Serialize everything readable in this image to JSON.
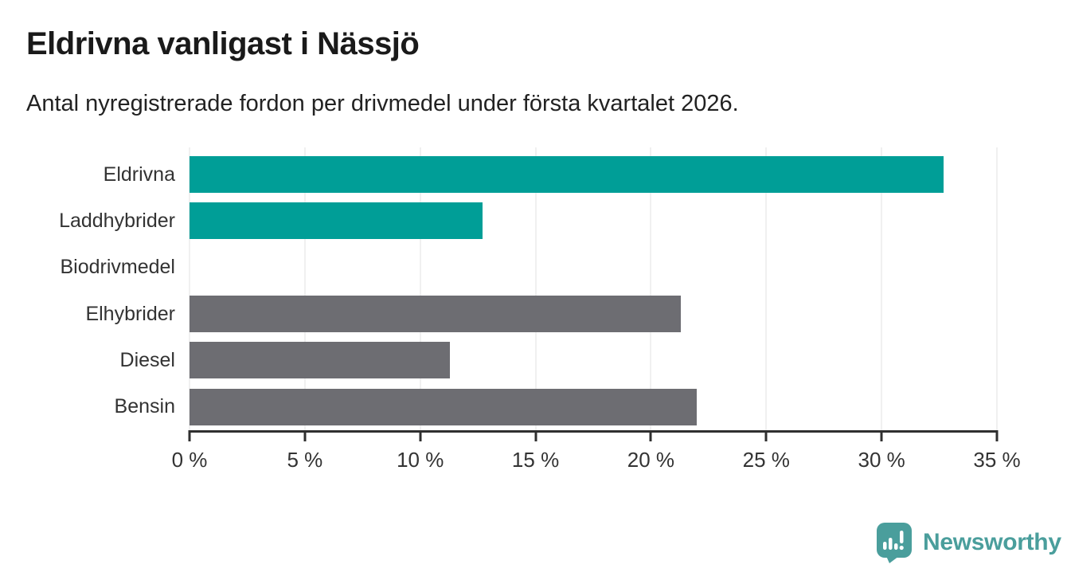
{
  "header": {
    "title": "Eldrivna vanligast i Nässjö",
    "subtitle": "Antal nyregistrerade fordon per drivmedel under första kvartalet 2026."
  },
  "chart_data": {
    "type": "bar",
    "orientation": "horizontal",
    "title": "Eldrivna vanligast i Nässjö",
    "subtitle": "Antal nyregistrerade fordon per drivmedel under första kvartalet 2026.",
    "categories": [
      "Eldrivna",
      "Laddhybrider",
      "Biodrivmedel",
      "Elhybrider",
      "Diesel",
      "Bensin"
    ],
    "values": [
      32.7,
      12.7,
      0,
      21.3,
      11.3,
      22.0
    ],
    "bar_colors": [
      "#009e97",
      "#009e97",
      "#6d6d72",
      "#6d6d72",
      "#6d6d72",
      "#6d6d72"
    ],
    "unit": "%",
    "xlabel": "",
    "ylabel": "",
    "xlim": [
      0,
      35
    ],
    "x_ticks": [
      0,
      5,
      10,
      15,
      20,
      25,
      30,
      35
    ],
    "x_tick_labels": [
      "0 %",
      "5 %",
      "10 %",
      "15 %",
      "20 %",
      "25 %",
      "30 %",
      "35 %"
    ],
    "grid": true,
    "legend": false
  },
  "branding": {
    "logo_text": "Newsworthy"
  },
  "colors": {
    "accent_teal": "#009e97",
    "bar_gray": "#6d6d72",
    "logo_teal": "#4a9e9c",
    "axis": "#2f2f2f",
    "gridline": "#e2e2e2",
    "title_text": "#1a1a1a",
    "label_text": "#333333",
    "background": "#ffffff"
  }
}
